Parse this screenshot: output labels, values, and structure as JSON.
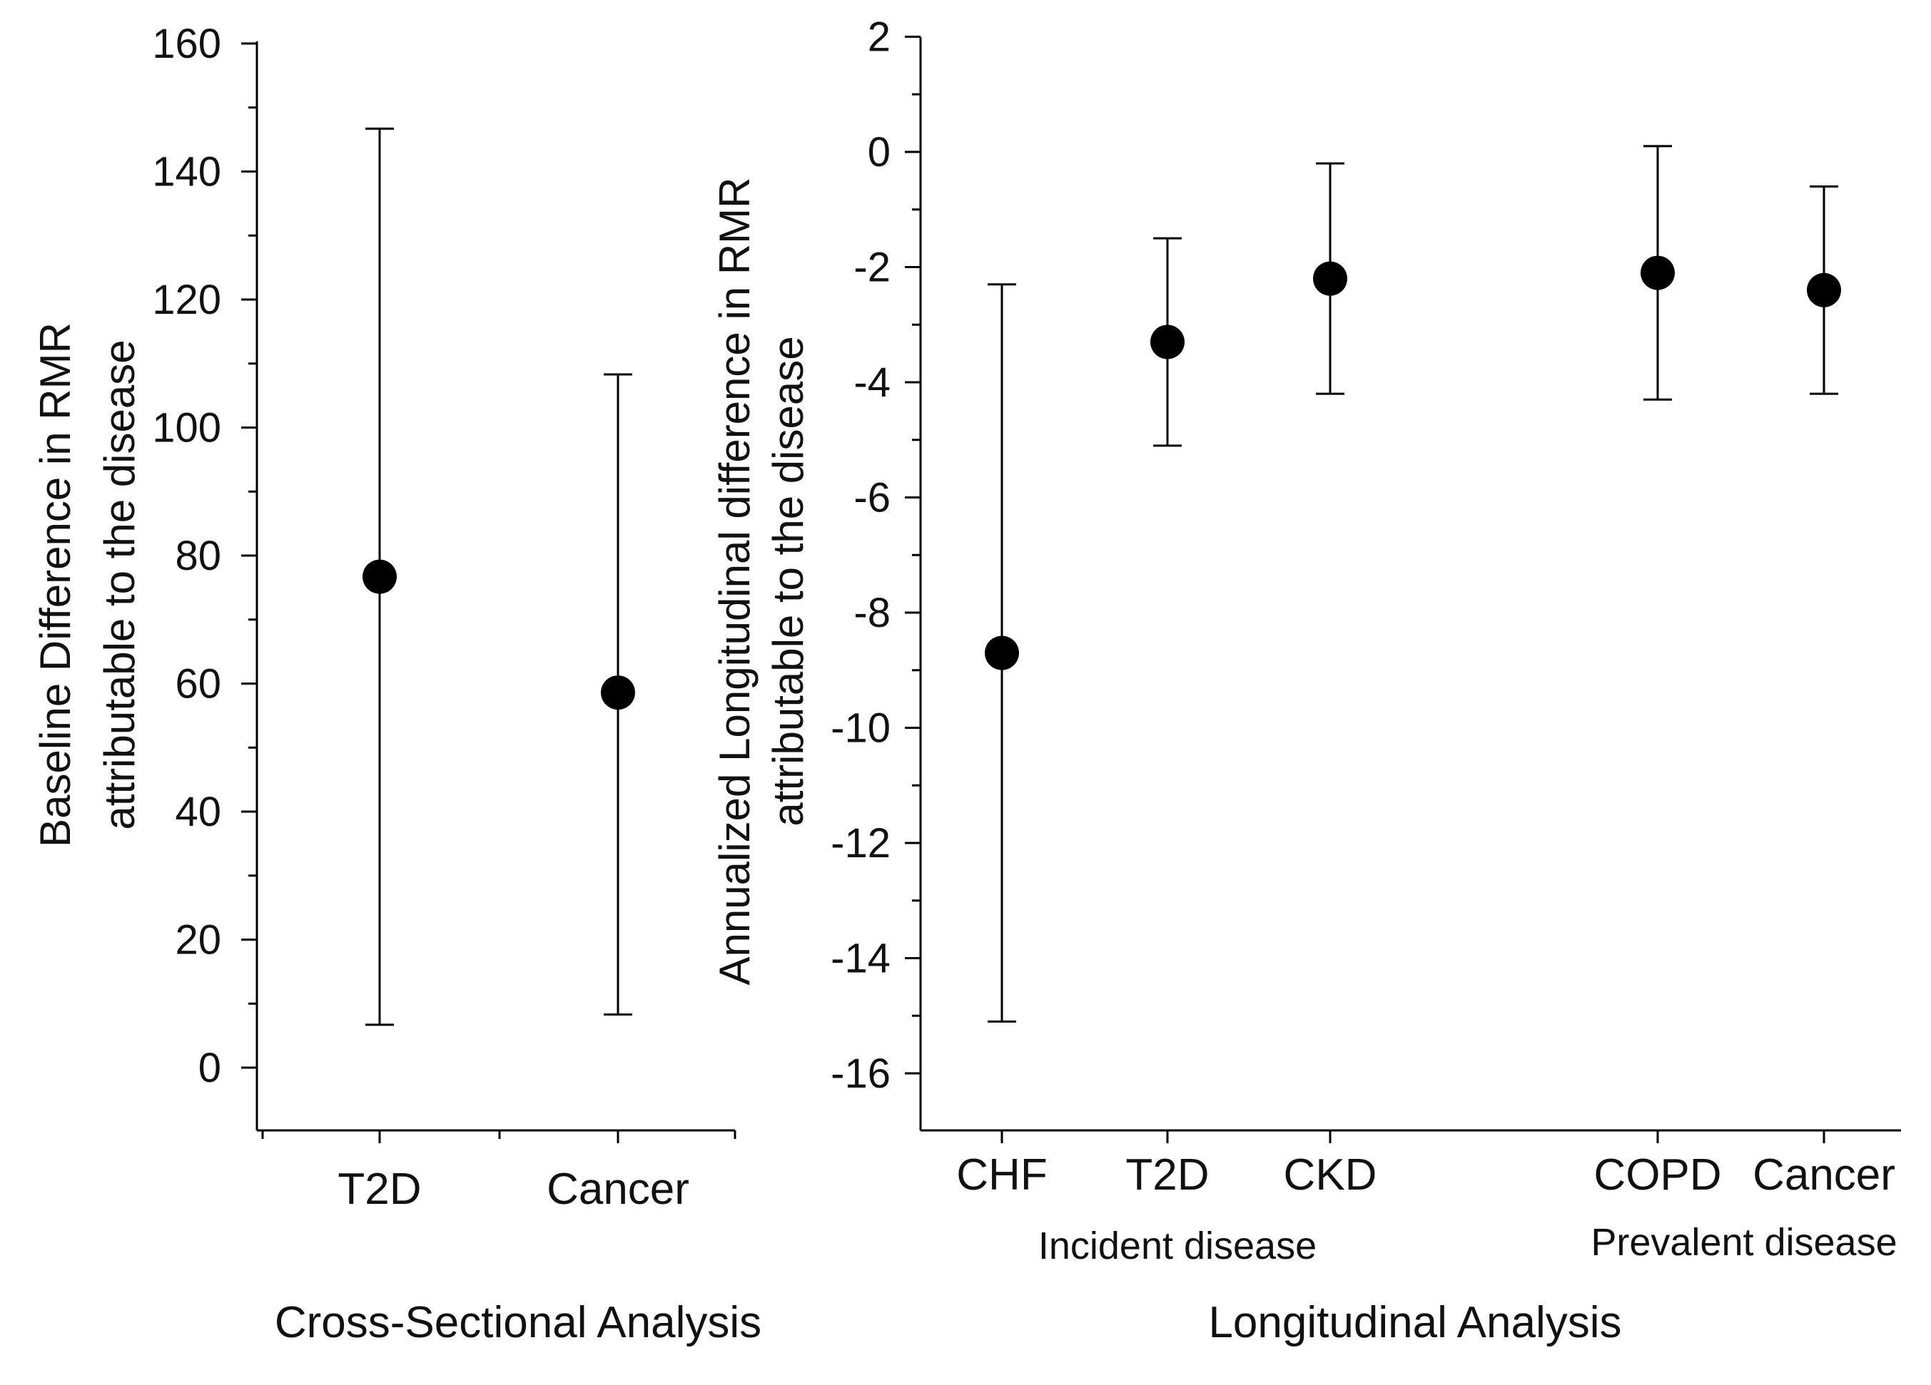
{
  "chart_data": [
    {
      "type": "scatter",
      "subtype": "point-estimate-with-error-bars",
      "title": "Cross-Sectional Analysis",
      "ylabel_line1": "Baseline Difference in RMR",
      "ylabel_line2": "attributable to the disease",
      "ylim": [
        -10,
        160
      ],
      "yticks": [
        0,
        20,
        40,
        60,
        80,
        100,
        120,
        140,
        160
      ],
      "categories": [
        "T2D",
        "Cancer"
      ],
      "values": [
        76.7,
        58.6
      ],
      "lower": [
        6.7,
        8.3
      ],
      "upper": [
        146.7,
        108.3
      ],
      "grid": false,
      "color": "#000000"
    },
    {
      "type": "scatter",
      "subtype": "point-estimate-with-error-bars",
      "title": "Longitudinal Analysis",
      "ylabel_line1": "Annualized Longitudinal difference in RMR",
      "ylabel_line2": "attributable to the disease",
      "ylim": [
        -17,
        2
      ],
      "yticks": [
        2,
        0,
        -2,
        -4,
        -6,
        -8,
        -10,
        -12,
        -14,
        -16
      ],
      "categories": [
        "CHF",
        "T2D",
        "CKD",
        "COPD",
        "Cancer"
      ],
      "values": [
        -8.7,
        -3.3,
        -2.2,
        -2.1,
        -2.4
      ],
      "lower": [
        -15.1,
        -5.1,
        -4.2,
        -4.3,
        -4.2
      ],
      "upper": [
        -2.3,
        -1.5,
        -0.2,
        0.1,
        -0.6
      ],
      "groups": [
        {
          "label": "Incident disease",
          "categories": [
            "CHF",
            "T2D",
            "CKD"
          ]
        },
        {
          "label": "Prevalent disease",
          "categories": [
            "COPD",
            "Cancer"
          ]
        }
      ],
      "grid": false,
      "color": "#000000"
    }
  ]
}
